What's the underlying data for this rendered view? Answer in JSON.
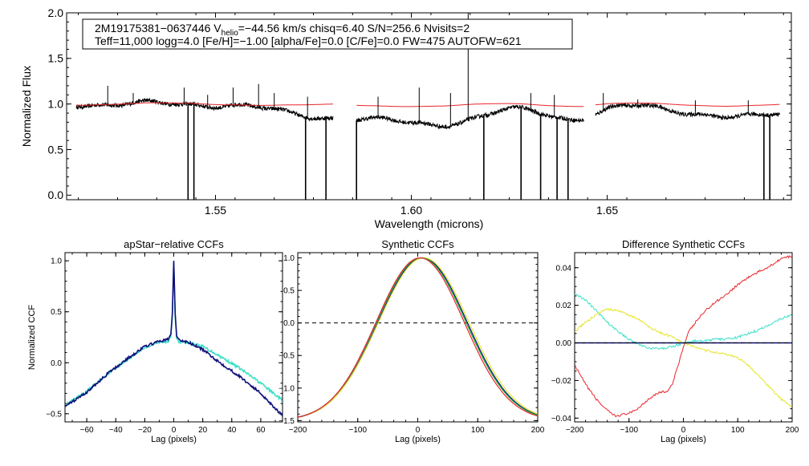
{
  "colors": {
    "black": "#000000",
    "red": "#e8262b",
    "navy": "#0e0e7a",
    "cyan": "#3de0c8",
    "yellow": "#e5e52e",
    "green": "#19a83a",
    "dash": "#000000"
  },
  "chart_data": [
    {
      "type": "line",
      "id": "spectrum",
      "title": "",
      "xlabel": "Wavelength (microns)",
      "ylabel": "Normalized Flux",
      "xlim": [
        1.512,
        1.697
      ],
      "ylim": [
        -0.05,
        2.0
      ],
      "xticks": [
        1.55,
        1.6,
        1.65
      ],
      "xtick_labels": [
        "1.55",
        "1.60",
        "1.65"
      ],
      "yticks": [
        0.0,
        0.5,
        1.0,
        1.5,
        2.0
      ],
      "ytick_labels": [
        "0.0",
        "0.5",
        "1.0",
        "1.5",
        "2.0"
      ],
      "info_box": {
        "line1_pre": "2M19175381−0637446  V",
        "line1_sub": "helio",
        "line1_post": "=−44.56 km/s  chisq=6.40  S/N=256.6  Nvisits=2",
        "line2": "Teff=11,000 logg=4.0 [Fe/H]=−1.00 [alpha/Fe]=0.0 [C/Fe]=0.0 FW=475 AUTOFW=621"
      },
      "chips": [
        [
          1.5145,
          1.58
        ],
        [
          1.586,
          1.644
        ],
        [
          1.647,
          1.694
        ]
      ],
      "dips": [
        [
          1.5688,
          0.065,
          1.0
        ],
        [
          1.589,
          0.12,
          0.95
        ],
        [
          1.611,
          0.09,
          0.86
        ],
        [
          1.642,
          0.06,
          0.88
        ],
        [
          1.682,
          0.09,
          0.82
        ]
      ],
      "series": [
        {
          "name": "observed",
          "color_key": "black"
        },
        {
          "name": "model",
          "color_key": "red"
        }
      ],
      "emission_spikes": [
        [
          1.5225,
          1.2
        ],
        [
          1.529,
          1.12
        ],
        [
          1.542,
          1.18
        ],
        [
          1.548,
          1.1
        ],
        [
          1.5545,
          1.18
        ],
        [
          1.561,
          1.22
        ],
        [
          1.565,
          1.12
        ],
        [
          1.5735,
          1.08
        ],
        [
          1.5915,
          1.08
        ],
        [
          1.602,
          1.18
        ],
        [
          1.61,
          1.12
        ],
        [
          1.6145,
          2.0
        ],
        [
          1.6305,
          1.12
        ],
        [
          1.6365,
          1.1
        ],
        [
          1.649,
          1.12
        ],
        [
          1.6578,
          1.05
        ],
        [
          1.6725,
          1.04
        ],
        [
          1.686,
          1.04
        ]
      ],
      "absorption_spikes": [
        [
          1.543,
          -0.05
        ],
        [
          1.5445,
          -0.05
        ],
        [
          1.573,
          -0.05
        ],
        [
          1.5782,
          -0.05
        ],
        [
          1.586,
          -0.05
        ],
        [
          1.6185,
          -0.05
        ],
        [
          1.628,
          -0.05
        ],
        [
          1.633,
          -0.05
        ],
        [
          1.6372,
          -0.05
        ],
        [
          1.64,
          -0.05
        ],
        [
          1.69,
          -0.05
        ],
        [
          1.6915,
          -0.05
        ]
      ]
    },
    {
      "type": "line",
      "id": "apstar-ccf",
      "title": "apStar−relative CCFs",
      "xlabel": "Lag (pixels)",
      "ylabel": "Normalized CCF",
      "xlim": [
        -75,
        75
      ],
      "ylim": [
        -0.58,
        1.08
      ],
      "xticks": [
        -60,
        -40,
        -20,
        0,
        20,
        40,
        60
      ],
      "xtick_labels": [
        "−60",
        "−40",
        "−20",
        "0",
        "20",
        "40",
        "60"
      ],
      "yticks": [
        -0.5,
        0.0,
        0.5,
        1.0
      ],
      "ytick_labels": [
        "−0.5",
        "0.0",
        "0.5",
        "1.0"
      ],
      "series": [
        {
          "name": "visit 1",
          "color_key": "navy",
          "x": [
            -75,
            -60,
            -45,
            -30,
            -20,
            -10,
            -4,
            -2,
            -1,
            0,
            1,
            2,
            4,
            10,
            20,
            30,
            45,
            60,
            75
          ],
          "y": [
            -0.43,
            -0.29,
            -0.1,
            0.06,
            0.16,
            0.21,
            0.23,
            0.28,
            0.48,
            1.0,
            0.48,
            0.26,
            0.22,
            0.2,
            0.13,
            0.02,
            -0.13,
            -0.3,
            -0.52
          ]
        },
        {
          "name": "visit 2",
          "color_key": "cyan",
          "x": [
            -75,
            -60,
            -45,
            -30,
            -20,
            -10,
            -4,
            -2,
            -1,
            0,
            1,
            2,
            4,
            10,
            20,
            30,
            45,
            60,
            75
          ],
          "y": [
            -0.42,
            -0.28,
            -0.1,
            0.05,
            0.15,
            0.2,
            0.21,
            0.26,
            0.45,
            0.98,
            0.45,
            0.24,
            0.2,
            0.2,
            0.16,
            0.08,
            -0.05,
            -0.2,
            -0.37
          ]
        }
      ]
    },
    {
      "type": "line",
      "id": "synthetic-ccf",
      "title": "Synthetic CCFs",
      "xlabel": "Lag (pixels)",
      "ylabel": "",
      "xlim": [
        -200,
        200
      ],
      "ylim": [
        -1.52,
        1.08
      ],
      "xticks": [
        -200,
        -100,
        0,
        100,
        200
      ],
      "xtick_labels": [
        "−200",
        "−100",
        "0",
        "100",
        "200"
      ],
      "yticks": [
        -1.5,
        -1.0,
        -0.5,
        0.0,
        0.5,
        1.0
      ],
      "ytick_labels": [
        "−1.5",
        "−1.0",
        "−0.5",
        "0.0",
        "0.5",
        "1.0"
      ],
      "zero_line": 0.0,
      "series": [
        {
          "name": "navy",
          "color_key": "navy",
          "center": 8,
          "scale": 0.0082
        },
        {
          "name": "yellow",
          "color_key": "yellow",
          "center": 10,
          "scale": 0.0081
        },
        {
          "name": "green",
          "color_key": "green",
          "center": 6,
          "scale": 0.0082
        },
        {
          "name": "red",
          "color_key": "red",
          "center": 4,
          "scale": 0.0083
        }
      ]
    },
    {
      "type": "line",
      "id": "difference-ccf",
      "title": "Difference Synthetic CCFs",
      "xlabel": "Lag (pixels)",
      "ylabel": "",
      "xlim": [
        -200,
        200
      ],
      "ylim": [
        -0.042,
        0.048
      ],
      "xticks": [
        -200,
        -100,
        0,
        100,
        200
      ],
      "xtick_labels": [
        "−200",
        "−100",
        "0",
        "100",
        "200"
      ],
      "yticks": [
        -0.04,
        -0.02,
        0.0,
        0.02,
        0.04
      ],
      "ytick_labels": [
        "−0.04",
        "−0.02",
        "0.00",
        "0.02",
        "0.04"
      ],
      "zero_line": 0.0,
      "series": [
        {
          "name": "red",
          "color_key": "red",
          "x": [
            -200,
            -180,
            -160,
            -140,
            -125,
            -110,
            -95,
            -80,
            -65,
            -50,
            -40,
            -30,
            -20,
            -10,
            0,
            10,
            25,
            40,
            60,
            80,
            100,
            120,
            140,
            160,
            180,
            200
          ],
          "y": [
            -0.012,
            -0.022,
            -0.03,
            -0.036,
            -0.039,
            -0.038,
            -0.037,
            -0.034,
            -0.03,
            -0.027,
            -0.026,
            -0.026,
            -0.022,
            -0.012,
            -0.002,
            0.006,
            0.012,
            0.017,
            0.022,
            0.026,
            0.031,
            0.035,
            0.038,
            0.041,
            0.045,
            0.046
          ]
        },
        {
          "name": "cyan",
          "color_key": "cyan",
          "x": [
            -200,
            -180,
            -160,
            -140,
            -120,
            -100,
            -80,
            -60,
            -40,
            -20,
            0,
            20,
            40,
            60,
            80,
            100,
            120,
            140,
            160,
            180,
            200
          ],
          "y": [
            0.026,
            0.023,
            0.017,
            0.011,
            0.006,
            0.002,
            -0.001,
            -0.003,
            -0.003,
            -0.002,
            0.0,
            0.001,
            0.001,
            0.002,
            0.002,
            0.003,
            0.005,
            0.007,
            0.01,
            0.013,
            0.015
          ]
        },
        {
          "name": "yellow",
          "color_key": "yellow",
          "x": [
            -200,
            -180,
            -160,
            -140,
            -120,
            -100,
            -80,
            -60,
            -40,
            -20,
            0,
            20,
            40,
            60,
            80,
            100,
            120,
            140,
            160,
            180,
            200
          ],
          "y": [
            0.006,
            0.011,
            0.015,
            0.018,
            0.017,
            0.015,
            0.012,
            0.008,
            0.005,
            0.003,
            0.0,
            -0.002,
            -0.004,
            -0.005,
            -0.006,
            -0.008,
            -0.012,
            -0.018,
            -0.024,
            -0.03,
            -0.034
          ]
        },
        {
          "name": "navy",
          "color_key": "navy",
          "x": [
            -200,
            200
          ],
          "y": [
            0.0,
            0.0
          ]
        }
      ]
    }
  ]
}
